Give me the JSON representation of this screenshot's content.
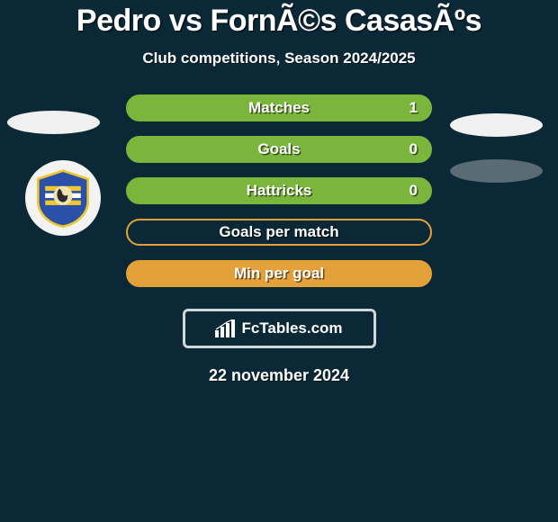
{
  "title": "Pedro vs FornÃ©s CasasÃºs",
  "subtitle": "Club competitions, Season 2024/2025",
  "date": "22 november 2024",
  "brand": {
    "text": "FcTables.com"
  },
  "colors": {
    "bar_green": "#7ab53c",
    "bar_orange": "#e4a13a",
    "oval_light": "#f0f0f0",
    "oval_dark": "#5a6b76",
    "background": "#0a2836",
    "border_grey": "#d0d6da"
  },
  "stats": [
    {
      "label": "Matches",
      "value": "1",
      "style": "solid",
      "color_key": "bar_green"
    },
    {
      "label": "Goals",
      "value": "0",
      "style": "solid",
      "color_key": "bar_green"
    },
    {
      "label": "Hattricks",
      "value": "0",
      "style": "solid",
      "color_key": "bar_green"
    },
    {
      "label": "Goals per match",
      "value": "",
      "style": "outline",
      "color_key": "bar_orange"
    },
    {
      "label": "Min per goal",
      "value": "",
      "style": "solid",
      "color_key": "bar_orange"
    }
  ],
  "badge": {
    "shield_fill": "#2b50a8",
    "shield_stroke": "#efc72e",
    "stripe1": "#efc72e",
    "stripe2": "#ffffff",
    "head_fill": "#2b2b2b"
  }
}
